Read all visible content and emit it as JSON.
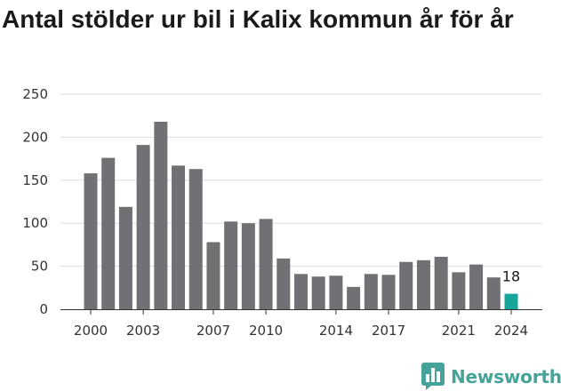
{
  "title": "Antal stölder ur bil i Kalix kommun år för år",
  "brand": {
    "name": "Newsworthy",
    "color": "#46a399",
    "icon": "bar-chart-logo-icon"
  },
  "colors": {
    "bar": "#717074",
    "highlight": "#16a59a",
    "grid": "#dddddd"
  },
  "chart_data": {
    "type": "bar",
    "title": "Antal stölder ur bil i Kalix kommun år för år",
    "xlabel": "",
    "ylabel": "",
    "categories": [
      "2000",
      "2001",
      "2002",
      "2003",
      "2004",
      "2005",
      "2006",
      "2007",
      "2008",
      "2009",
      "2010",
      "2011",
      "2012",
      "2013",
      "2014",
      "2015",
      "2016",
      "2017",
      "2018",
      "2019",
      "2020",
      "2021",
      "2022",
      "2023",
      "2024"
    ],
    "x_tick_labels": [
      "2000",
      "2003",
      "2007",
      "2010",
      "2014",
      "2017",
      "2021",
      "2024"
    ],
    "values": [
      158,
      176,
      119,
      191,
      218,
      167,
      163,
      78,
      102,
      100,
      105,
      59,
      41,
      38,
      39,
      26,
      41,
      40,
      55,
      57,
      61,
      43,
      52,
      37,
      18
    ],
    "ylim": [
      0,
      250
    ],
    "yticks": [
      0,
      50,
      100,
      150,
      200,
      250
    ],
    "highlight_index": 24,
    "data_labels": [
      {
        "index": 24,
        "text": "18"
      }
    ],
    "grid": true,
    "legend": "none"
  }
}
